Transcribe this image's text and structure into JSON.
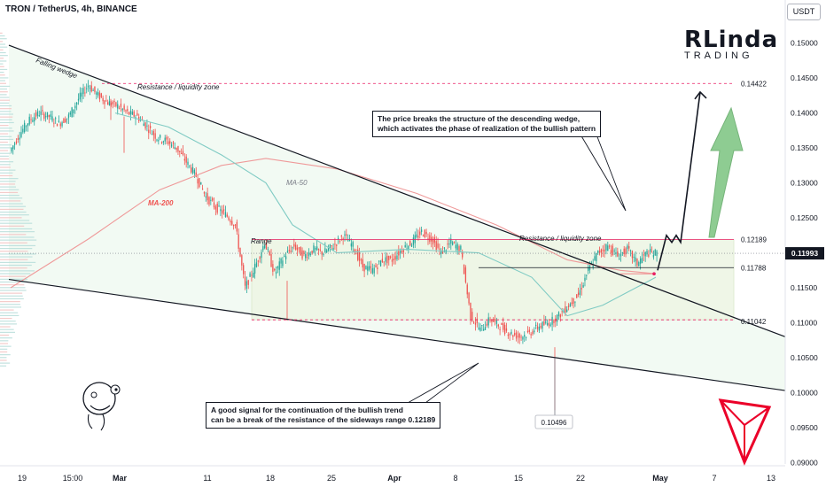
{
  "header": {
    "title": "TRON / TetherUS, 4h, BINANCE",
    "currency": "USDT"
  },
  "brand": {
    "line1": "RLinda",
    "line2": "TRADING"
  },
  "chart_data": {
    "type": "candlestick",
    "symbol": "TRON / TetherUS",
    "timeframe": "4h",
    "exchange": "BINANCE",
    "x_ticks": [
      "19",
      "15:00",
      "Mar",
      "11",
      "18",
      "25",
      "Apr",
      "8",
      "15",
      "22",
      "May",
      "7",
      "13"
    ],
    "y_ticks": [
      "0.15000",
      "0.14500",
      "0.14000",
      "0.13500",
      "0.13000",
      "0.12500",
      "0.12000",
      "0.11500",
      "0.11000",
      "0.10500",
      "0.10000",
      "0.09500",
      "0.09000"
    ],
    "ylim": [
      0.0898,
      0.1554
    ],
    "current_price": "0.11993",
    "price_levels": [
      {
        "label": "0.14422",
        "value": 0.14422
      },
      {
        "label": "0.12189",
        "value": 0.12189
      },
      {
        "label": "0.11788",
        "value": 0.11788
      },
      {
        "label": "0.11042",
        "value": 0.11042
      },
      {
        "label": "0.10496",
        "value": 0.10496
      }
    ],
    "annotations": [
      "Falling wedge",
      "Resistance / liquidity zone",
      "Resistance / liquidity zone",
      "Range",
      "MA-50",
      "MA-200"
    ],
    "moving_averages": [
      {
        "name": "MA-50",
        "color": "#26a69a"
      },
      {
        "name": "MA-200",
        "color": "#ef5350"
      }
    ],
    "price_path": [
      [
        0.1345,
        0.137
      ],
      [
        0.137,
        0.139
      ],
      [
        0.139,
        0.14
      ],
      [
        0.14,
        0.1395
      ],
      [
        0.1395,
        0.1385
      ],
      [
        0.1385,
        0.1395
      ],
      [
        0.1395,
        0.142
      ],
      [
        0.142,
        0.144
      ],
      [
        0.144,
        0.1425
      ],
      [
        0.1425,
        0.1415
      ],
      [
        0.1415,
        0.141
      ],
      [
        0.141,
        0.14
      ],
      [
        0.14,
        0.1395
      ],
      [
        0.1395,
        0.138
      ],
      [
        0.138,
        0.1365
      ],
      [
        0.1365,
        0.136
      ],
      [
        0.136,
        0.135
      ],
      [
        0.135,
        0.133
      ],
      [
        0.133,
        0.131
      ],
      [
        0.131,
        0.128
      ],
      [
        0.128,
        0.1265
      ],
      [
        0.1265,
        0.1255
      ],
      [
        0.1255,
        0.124
      ],
      [
        0.124,
        0.115
      ],
      [
        0.115,
        0.118
      ],
      [
        0.118,
        0.1215
      ],
      [
        0.1215,
        0.117
      ],
      [
        0.117,
        0.1195
      ],
      [
        0.1195,
        0.121
      ],
      [
        0.121,
        0.1195
      ],
      [
        0.1195,
        0.1205
      ],
      [
        0.1205,
        0.12
      ],
      [
        0.12,
        0.121
      ],
      [
        0.121,
        0.1225
      ],
      [
        0.1225,
        0.121
      ],
      [
        0.121,
        0.118
      ],
      [
        0.118,
        0.1175
      ],
      [
        0.1175,
        0.119
      ],
      [
        0.119,
        0.119
      ],
      [
        0.119,
        0.1205
      ],
      [
        0.1205,
        0.1215
      ],
      [
        0.1215,
        0.123
      ],
      [
        0.123,
        0.122
      ],
      [
        0.122,
        0.12
      ],
      [
        0.12,
        0.1215
      ],
      [
        0.1215,
        0.1205
      ],
      [
        0.1205,
        0.111
      ],
      [
        0.111,
        0.109
      ],
      [
        0.109,
        0.1105
      ],
      [
        0.1105,
        0.1095
      ],
      [
        0.1095,
        0.1085
      ],
      [
        0.1085,
        0.108
      ],
      [
        0.108,
        0.1085
      ],
      [
        0.1085,
        0.1095
      ],
      [
        0.1095,
        0.11
      ],
      [
        0.11,
        0.111
      ],
      [
        0.111,
        0.1125
      ],
      [
        0.1125,
        0.114
      ],
      [
        0.114,
        0.1175
      ],
      [
        0.1175,
        0.12
      ],
      [
        0.12,
        0.121
      ],
      [
        0.121,
        0.1195
      ],
      [
        0.1195,
        0.1205
      ],
      [
        0.1205,
        0.1185
      ],
      [
        0.1185,
        0.12
      ],
      [
        0.12,
        0.1199
      ]
    ],
    "projection_path": [
      0.1175,
      0.1225,
      0.1215,
      0.1225,
      0.1215,
      0.143
    ]
  },
  "callouts": {
    "top": [
      "The price breaks the structure of the descending wedge,",
      "which activates the phase of realization of the bullish pattern"
    ],
    "bottom": [
      "A good signal for the continuation of the bullish trend",
      "can be a break of the resistance of the sideways range 0.12189"
    ]
  },
  "colors": {
    "up": "#26a69a",
    "down": "#ef5350",
    "resistance": "#e91e63",
    "tron": "#eb0029",
    "arrow": "#7bc47f",
    "wedge": "#131722",
    "range_fill": "#eef6e5"
  }
}
